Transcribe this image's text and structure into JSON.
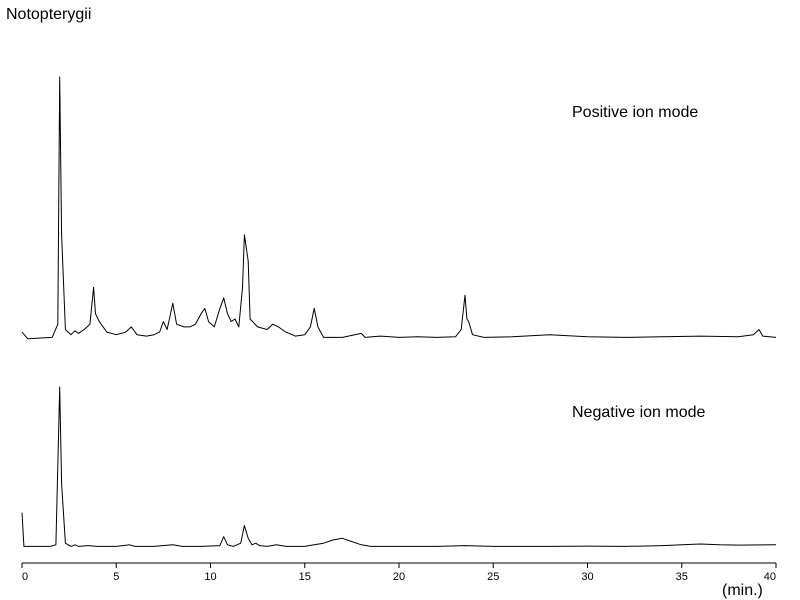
{
  "chart_data": {
    "type": "line",
    "title": "Notopterygii",
    "xlabel": "(min.)",
    "ylabel": "",
    "xlim": [
      0,
      40
    ],
    "x_ticks": [
      0,
      5,
      10,
      15,
      20,
      25,
      30,
      35,
      40
    ],
    "grid": false,
    "legend": "none",
    "y_scale": "relative intensity (0-100)",
    "series": [
      {
        "name": "Positive ion mode",
        "points": [
          [
            0,
            3
          ],
          [
            0.3,
            0.5
          ],
          [
            1.6,
            1
          ],
          [
            1.9,
            6
          ],
          [
            2.0,
            100
          ],
          [
            2.1,
            40
          ],
          [
            2.3,
            4
          ],
          [
            2.6,
            2
          ],
          [
            2.8,
            3.5
          ],
          [
            3.0,
            2.5
          ],
          [
            3.3,
            4
          ],
          [
            3.6,
            6
          ],
          [
            3.8,
            20
          ],
          [
            3.9,
            10
          ],
          [
            4.1,
            7
          ],
          [
            4.5,
            3
          ],
          [
            5.0,
            2
          ],
          [
            5.5,
            3
          ],
          [
            5.8,
            5
          ],
          [
            6.1,
            2
          ],
          [
            6.6,
            1.5
          ],
          [
            7.0,
            2
          ],
          [
            7.3,
            3
          ],
          [
            7.5,
            7
          ],
          [
            7.7,
            4
          ],
          [
            8.0,
            14
          ],
          [
            8.2,
            6
          ],
          [
            8.6,
            5
          ],
          [
            8.9,
            5
          ],
          [
            9.2,
            6
          ],
          [
            9.5,
            10
          ],
          [
            9.7,
            12
          ],
          [
            9.9,
            7
          ],
          [
            10.2,
            5
          ],
          [
            10.5,
            12
          ],
          [
            10.7,
            16
          ],
          [
            10.9,
            10
          ],
          [
            11.1,
            7
          ],
          [
            11.3,
            8
          ],
          [
            11.5,
            5
          ],
          [
            11.7,
            20
          ],
          [
            11.8,
            40
          ],
          [
            12.0,
            30
          ],
          [
            12.1,
            8
          ],
          [
            12.5,
            5
          ],
          [
            13.0,
            4
          ],
          [
            13.3,
            6
          ],
          [
            13.6,
            5
          ],
          [
            14.0,
            3
          ],
          [
            14.5,
            1.5
          ],
          [
            15.0,
            2
          ],
          [
            15.3,
            5
          ],
          [
            15.5,
            12
          ],
          [
            15.7,
            5
          ],
          [
            16.0,
            1
          ],
          [
            17.0,
            1
          ],
          [
            18.0,
            2.5
          ],
          [
            18.2,
            1
          ],
          [
            19.0,
            1.5
          ],
          [
            20.0,
            1
          ],
          [
            21.0,
            1.2
          ],
          [
            22.0,
            1
          ],
          [
            23.0,
            1.2
          ],
          [
            23.3,
            4
          ],
          [
            23.5,
            17
          ],
          [
            23.6,
            8
          ],
          [
            23.7,
            7
          ],
          [
            23.9,
            2
          ],
          [
            24.5,
            1
          ],
          [
            26.0,
            1.2
          ],
          [
            28.0,
            2
          ],
          [
            30.0,
            1.2
          ],
          [
            32.0,
            1
          ],
          [
            34.0,
            1.2
          ],
          [
            36.0,
            1.5
          ],
          [
            38.0,
            1.2
          ],
          [
            38.8,
            2
          ],
          [
            39.1,
            4
          ],
          [
            39.3,
            1.5
          ],
          [
            40.0,
            1
          ]
        ]
      },
      {
        "name": "Negative ion mode",
        "points": [
          [
            0,
            22
          ],
          [
            0.1,
            1
          ],
          [
            0.5,
            1
          ],
          [
            1.5,
            1
          ],
          [
            1.8,
            2
          ],
          [
            2.0,
            100
          ],
          [
            2.1,
            40
          ],
          [
            2.3,
            3
          ],
          [
            2.6,
            1
          ],
          [
            2.8,
            2
          ],
          [
            3.0,
            1
          ],
          [
            3.5,
            1.5
          ],
          [
            4.0,
            1
          ],
          [
            5.0,
            1
          ],
          [
            5.7,
            2
          ],
          [
            6.0,
            1
          ],
          [
            7.0,
            1
          ],
          [
            8.0,
            2
          ],
          [
            8.5,
            1
          ],
          [
            9.5,
            1
          ],
          [
            10.5,
            1.5
          ],
          [
            10.7,
            7
          ],
          [
            10.9,
            2
          ],
          [
            11.2,
            1
          ],
          [
            11.6,
            3
          ],
          [
            11.8,
            14
          ],
          [
            12.0,
            6
          ],
          [
            12.2,
            2
          ],
          [
            12.4,
            3
          ],
          [
            12.6,
            1.5
          ],
          [
            13.0,
            1
          ],
          [
            13.5,
            2
          ],
          [
            14.0,
            1
          ],
          [
            15.0,
            1
          ],
          [
            15.5,
            2
          ],
          [
            16.0,
            3
          ],
          [
            16.5,
            5
          ],
          [
            17.0,
            6
          ],
          [
            17.5,
            4
          ],
          [
            18.0,
            2
          ],
          [
            18.5,
            1
          ],
          [
            20.0,
            1
          ],
          [
            22.0,
            1
          ],
          [
            23.5,
            1.5
          ],
          [
            25.0,
            1
          ],
          [
            28.0,
            1
          ],
          [
            30.0,
            1.2
          ],
          [
            32.0,
            1
          ],
          [
            34.0,
            1.5
          ],
          [
            35.0,
            2
          ],
          [
            36.0,
            2.5
          ],
          [
            37.0,
            2
          ],
          [
            38.0,
            1.8
          ],
          [
            40.0,
            2
          ]
        ]
      }
    ]
  }
}
